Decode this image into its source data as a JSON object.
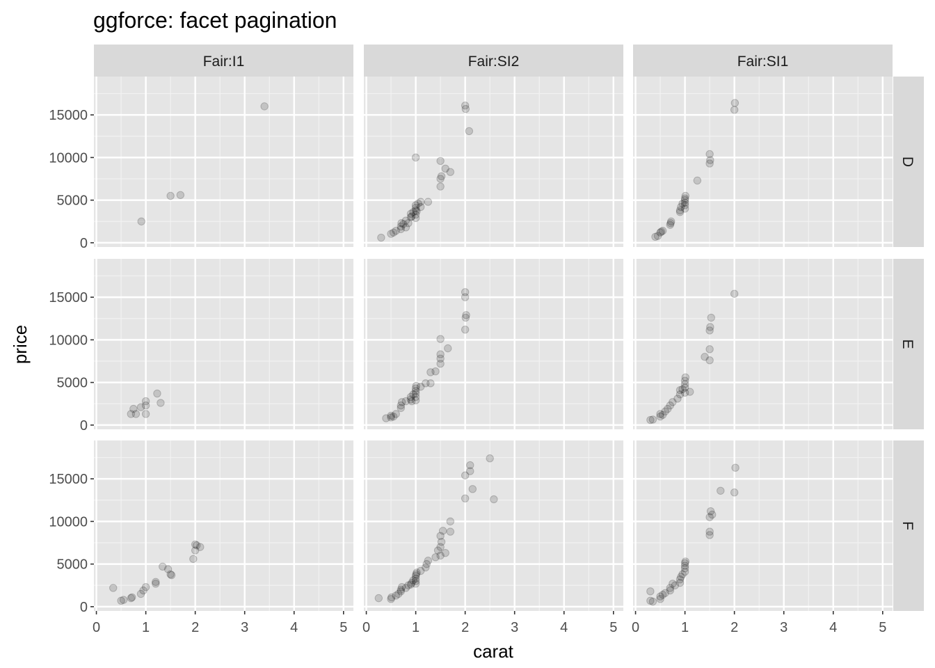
{
  "chart_data": {
    "type": "scatter",
    "title": "ggforce: facet pagination",
    "xlabel": "carat",
    "ylabel": "price",
    "xlim": [
      -0.05,
      5.2
    ],
    "ylim": [
      -500,
      19500
    ],
    "x_ticks": [
      0,
      1,
      2,
      3,
      4,
      5
    ],
    "y_ticks": [
      0,
      5000,
      10000,
      15000
    ],
    "grid": true,
    "point_color": "#000000",
    "point_alpha": 0.15,
    "panel_bg": "#E5E5E5",
    "strip_bg": "#D9D9D9",
    "column_strips": [
      "Fair:I1",
      "Fair:SI2",
      "Fair:SI1"
    ],
    "row_strips": [
      "D",
      "E",
      "F"
    ],
    "panels": [
      {
        "row": "D",
        "col": "Fair:I1",
        "points": [
          [
            0.91,
            2500
          ],
          [
            1.5,
            5500
          ],
          [
            1.7,
            5600
          ],
          [
            3.4,
            16000
          ]
        ]
      },
      {
        "row": "D",
        "col": "Fair:SI2",
        "points": [
          [
            0.3,
            600
          ],
          [
            0.5,
            1050
          ],
          [
            0.55,
            1200
          ],
          [
            0.6,
            1400
          ],
          [
            0.7,
            1600
          ],
          [
            0.7,
            1900
          ],
          [
            0.71,
            2300
          ],
          [
            0.75,
            2200
          ],
          [
            0.8,
            1800
          ],
          [
            0.8,
            2600
          ],
          [
            0.85,
            2300
          ],
          [
            0.9,
            3000
          ],
          [
            0.9,
            3400
          ],
          [
            0.92,
            3100
          ],
          [
            0.95,
            3600
          ],
          [
            1.0,
            2900
          ],
          [
            1.0,
            3300
          ],
          [
            1.0,
            3800
          ],
          [
            1.0,
            4100
          ],
          [
            1.0,
            4400
          ],
          [
            1.02,
            3700
          ],
          [
            1.05,
            4600
          ],
          [
            1.1,
            4200
          ],
          [
            1.1,
            4800
          ],
          [
            1.25,
            4800
          ],
          [
            1.5,
            6600
          ],
          [
            1.5,
            7500
          ],
          [
            1.52,
            7800
          ],
          [
            1.5,
            9600
          ],
          [
            1.6,
            8700
          ],
          [
            1.7,
            8300
          ],
          [
            1.0,
            10000
          ],
          [
            2.0,
            16100
          ],
          [
            2.01,
            15700
          ],
          [
            2.08,
            13100
          ]
        ]
      },
      {
        "row": "D",
        "col": "Fair:SI1",
        "points": [
          [
            0.4,
            700
          ],
          [
            0.45,
            800
          ],
          [
            0.5,
            1200
          ],
          [
            0.52,
            1300
          ],
          [
            0.55,
            1400
          ],
          [
            0.7,
            2100
          ],
          [
            0.71,
            2300
          ],
          [
            0.72,
            2500
          ],
          [
            0.9,
            3600
          ],
          [
            0.9,
            3800
          ],
          [
            0.92,
            4200
          ],
          [
            0.95,
            4600
          ],
          [
            1.0,
            4000
          ],
          [
            1.0,
            4400
          ],
          [
            1.0,
            4700
          ],
          [
            1.0,
            5000
          ],
          [
            1.0,
            5200
          ],
          [
            1.01,
            5500
          ],
          [
            1.25,
            7300
          ],
          [
            1.5,
            9300
          ],
          [
            1.51,
            9700
          ],
          [
            1.5,
            10400
          ],
          [
            2.0,
            15600
          ],
          [
            2.01,
            16400
          ]
        ]
      },
      {
        "row": "E",
        "col": "Fair:I1",
        "points": [
          [
            0.7,
            1300
          ],
          [
            0.75,
            1900
          ],
          [
            0.8,
            1300
          ],
          [
            0.9,
            2100
          ],
          [
            1.0,
            1300
          ],
          [
            1.0,
            2300
          ],
          [
            1.0,
            2800
          ],
          [
            1.23,
            3700
          ],
          [
            1.3,
            2600
          ]
        ]
      },
      {
        "row": "E",
        "col": "Fair:SI2",
        "points": [
          [
            0.4,
            800
          ],
          [
            0.5,
            900
          ],
          [
            0.5,
            1100
          ],
          [
            0.55,
            1000
          ],
          [
            0.6,
            1300
          ],
          [
            0.7,
            2000
          ],
          [
            0.7,
            2300
          ],
          [
            0.72,
            2700
          ],
          [
            0.8,
            2800
          ],
          [
            0.9,
            3000
          ],
          [
            0.9,
            3300
          ],
          [
            0.92,
            2800
          ],
          [
            0.95,
            3600
          ],
          [
            1.0,
            2900
          ],
          [
            1.0,
            3300
          ],
          [
            1.0,
            3700
          ],
          [
            1.0,
            4000
          ],
          [
            1.0,
            4300
          ],
          [
            1.01,
            4600
          ],
          [
            1.1,
            4500
          ],
          [
            1.2,
            4900
          ],
          [
            1.3,
            4900
          ],
          [
            1.3,
            6200
          ],
          [
            1.4,
            6300
          ],
          [
            1.5,
            7200
          ],
          [
            1.5,
            7800
          ],
          [
            1.5,
            8300
          ],
          [
            1.5,
            10100
          ],
          [
            1.65,
            9000
          ],
          [
            2.0,
            11200
          ],
          [
            2.01,
            12600
          ],
          [
            2.02,
            12900
          ],
          [
            2.0,
            15000
          ],
          [
            2.0,
            15600
          ]
        ]
      },
      {
        "row": "E",
        "col": "Fair:SI1",
        "points": [
          [
            0.3,
            600
          ],
          [
            0.35,
            650
          ],
          [
            0.5,
            1000
          ],
          [
            0.5,
            1300
          ],
          [
            0.55,
            1200
          ],
          [
            0.6,
            1600
          ],
          [
            0.65,
            1900
          ],
          [
            0.7,
            2300
          ],
          [
            0.75,
            2700
          ],
          [
            0.85,
            3100
          ],
          [
            0.9,
            3600
          ],
          [
            0.9,
            4100
          ],
          [
            0.95,
            4200
          ],
          [
            1.0,
            3800
          ],
          [
            1.0,
            4400
          ],
          [
            1.0,
            4800
          ],
          [
            1.0,
            5200
          ],
          [
            1.01,
            5600
          ],
          [
            1.1,
            3900
          ],
          [
            1.4,
            8000
          ],
          [
            1.5,
            7600
          ],
          [
            1.5,
            8900
          ],
          [
            1.5,
            11100
          ],
          [
            1.51,
            11500
          ],
          [
            1.53,
            12600
          ],
          [
            2.0,
            15400
          ]
        ]
      },
      {
        "row": "F",
        "col": "Fair:I1",
        "points": [
          [
            0.34,
            2200
          ],
          [
            0.5,
            700
          ],
          [
            0.55,
            800
          ],
          [
            0.7,
            1000
          ],
          [
            0.72,
            1100
          ],
          [
            0.9,
            1500
          ],
          [
            0.95,
            1900
          ],
          [
            1.0,
            2300
          ],
          [
            1.2,
            2700
          ],
          [
            1.2,
            2900
          ],
          [
            1.34,
            4700
          ],
          [
            1.45,
            4400
          ],
          [
            1.5,
            3800
          ],
          [
            1.52,
            3700
          ],
          [
            1.96,
            5600
          ],
          [
            2.0,
            6600
          ],
          [
            2.0,
            7300
          ],
          [
            2.03,
            7200
          ],
          [
            2.1,
            7000
          ]
        ]
      },
      {
        "row": "F",
        "col": "Fair:SI2",
        "points": [
          [
            0.25,
            1000
          ],
          [
            0.5,
            900
          ],
          [
            0.51,
            1100
          ],
          [
            0.6,
            1300
          ],
          [
            0.65,
            1500
          ],
          [
            0.7,
            1800
          ],
          [
            0.7,
            2000
          ],
          [
            0.72,
            2300
          ],
          [
            0.8,
            2200
          ],
          [
            0.85,
            2500
          ],
          [
            0.9,
            2600
          ],
          [
            0.92,
            2800
          ],
          [
            0.95,
            3100
          ],
          [
            1.0,
            2700
          ],
          [
            1.0,
            3000
          ],
          [
            1.0,
            3300
          ],
          [
            1.0,
            3600
          ],
          [
            1.01,
            3800
          ],
          [
            1.02,
            4000
          ],
          [
            1.1,
            4200
          ],
          [
            1.2,
            4600
          ],
          [
            1.22,
            5000
          ],
          [
            1.25,
            5400
          ],
          [
            1.4,
            5800
          ],
          [
            1.45,
            6600
          ],
          [
            1.5,
            6000
          ],
          [
            1.5,
            7000
          ],
          [
            1.52,
            7600
          ],
          [
            1.5,
            8300
          ],
          [
            1.55,
            8900
          ],
          [
            1.6,
            6300
          ],
          [
            1.7,
            8800
          ],
          [
            1.7,
            10000
          ],
          [
            2.0,
            12700
          ],
          [
            2.0,
            15400
          ],
          [
            2.1,
            15900
          ],
          [
            2.1,
            16600
          ],
          [
            2.15,
            13800
          ],
          [
            2.5,
            17400
          ],
          [
            2.58,
            12600
          ]
        ]
      },
      {
        "row": "F",
        "col": "Fair:SI1",
        "points": [
          [
            0.3,
            700
          ],
          [
            0.3,
            1800
          ],
          [
            0.35,
            600
          ],
          [
            0.5,
            900
          ],
          [
            0.5,
            1200
          ],
          [
            0.55,
            1400
          ],
          [
            0.6,
            1600
          ],
          [
            0.7,
            1900
          ],
          [
            0.7,
            2200
          ],
          [
            0.75,
            2700
          ],
          [
            0.8,
            2500
          ],
          [
            0.9,
            2800
          ],
          [
            0.9,
            3200
          ],
          [
            0.92,
            3500
          ],
          [
            0.95,
            3800
          ],
          [
            1.0,
            4100
          ],
          [
            1.0,
            4500
          ],
          [
            1.0,
            4800
          ],
          [
            1.0,
            5100
          ],
          [
            1.01,
            5300
          ],
          [
            1.5,
            8400
          ],
          [
            1.5,
            8800
          ],
          [
            1.5,
            10500
          ],
          [
            1.52,
            11200
          ],
          [
            1.55,
            10800
          ],
          [
            1.72,
            13600
          ],
          [
            2.0,
            13400
          ],
          [
            2.02,
            16300
          ]
        ]
      }
    ]
  }
}
